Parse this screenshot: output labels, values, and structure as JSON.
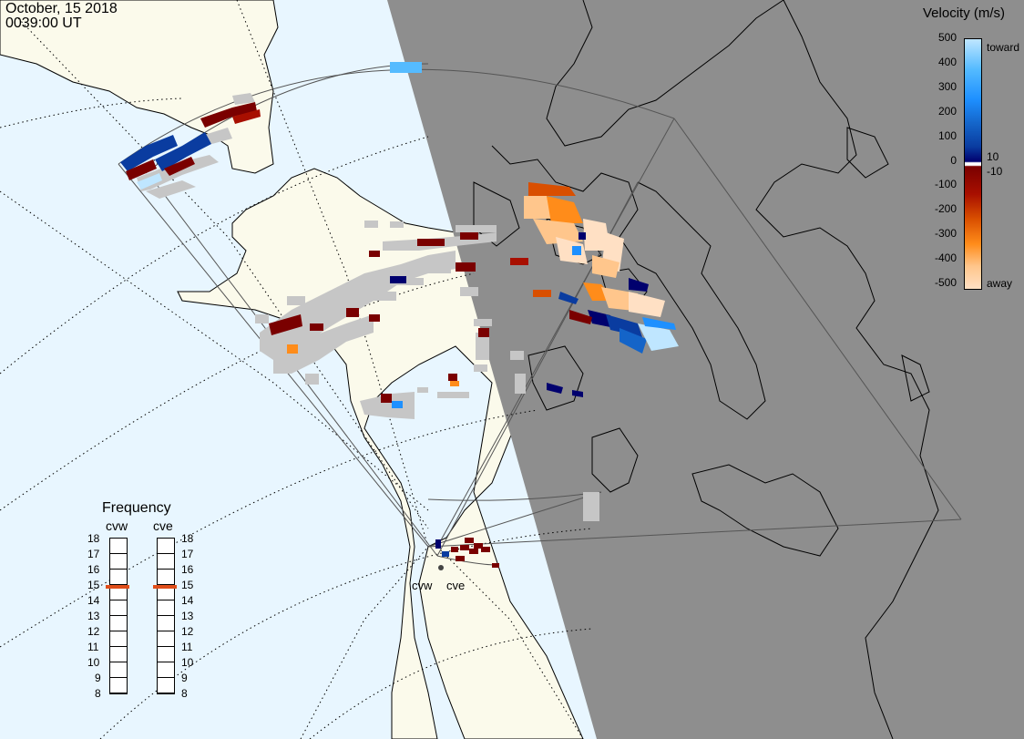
{
  "header": {
    "date": "October, 15 2018",
    "time": "0039:00 UT"
  },
  "colorbar": {
    "title": "Velocity (m/s)",
    "ticks": [
      "500",
      "400",
      "300",
      "200",
      "100",
      "0",
      "-100",
      "-200",
      "-300",
      "-400",
      "-500"
    ],
    "toward_label": "toward",
    "away_label": "away",
    "inner_pos_label": "10",
    "inner_neg_label": "-10",
    "colors": [
      "#bfe6ff",
      "#55bbff",
      "#1e90ff",
      "#1464c8",
      "#0a3ca0",
      "#00006e",
      "#7a0000",
      "#a80f00",
      "#d94f00",
      "#ff8c1a",
      "#ffc68c",
      "#ffe0c4"
    ]
  },
  "frequency": {
    "title": "Frequency",
    "radars": [
      {
        "name": "cvw",
        "selected_mhz": 15
      },
      {
        "name": "cve",
        "selected_mhz": 15
      }
    ],
    "scale": [
      "18",
      "17",
      "16",
      "15",
      "14",
      "13",
      "12",
      "11",
      "10",
      "9",
      "8"
    ]
  },
  "map": {
    "radar_sites": [
      "cvw",
      "cve"
    ],
    "colors": {
      "ocean": "#e8f6ff",
      "land": "#fbfaeb",
      "night": "#8e8e8e",
      "ground_scatter": "#c6c6c6",
      "coast": "#000000"
    }
  }
}
